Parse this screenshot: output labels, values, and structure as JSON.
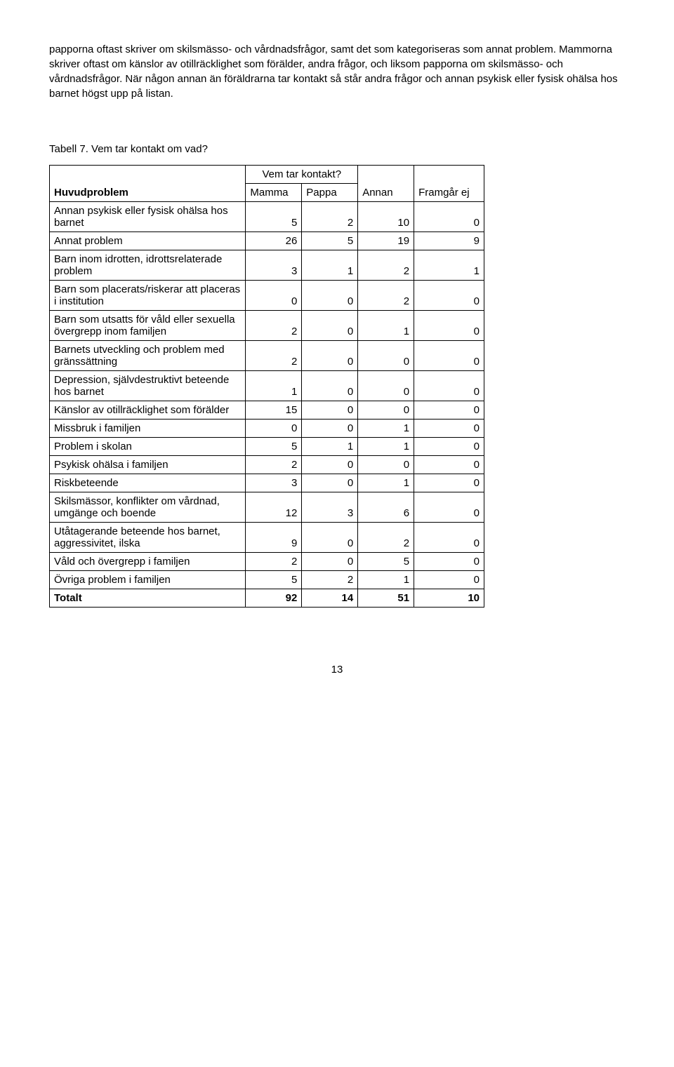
{
  "paragraph": "papporna oftast skriver om skilsmässo- och vårdnadsfrågor, samt det som kategoriseras som annat problem. Mammorna skriver oftast om känslor av otillräcklighet som förälder, andra frågor, och liksom papporna om skilsmässo- och vårdnadsfrågor. När någon annan än föräldrarna tar kontakt så står andra frågor och annan psykisk eller fysisk ohälsa hos barnet högst upp på listan.",
  "table_caption": "Tabell 7. Vem tar kontakt om vad?",
  "table": {
    "group_header": "Vem tar kontakt?",
    "row_header_label": "Huvudproblem",
    "columns": [
      "Mamma",
      "Pappa",
      "Annan",
      "Framgår ej"
    ],
    "col_widths": [
      "280px",
      "80px",
      "80px",
      "80px",
      "100px"
    ],
    "rows": [
      {
        "label": "Annan psykisk eller fysisk ohälsa hos barnet",
        "vals": [
          5,
          2,
          10,
          0
        ]
      },
      {
        "label": "Annat problem",
        "vals": [
          26,
          5,
          19,
          9
        ]
      },
      {
        "label": "Barn inom idrotten, idrottsrelaterade problem",
        "vals": [
          3,
          1,
          2,
          1
        ]
      },
      {
        "label": "Barn som placerats/riskerar att placeras i institution",
        "vals": [
          0,
          0,
          2,
          0
        ]
      },
      {
        "label": "Barn som utsatts för våld eller sexuella övergrepp inom familjen",
        "vals": [
          2,
          0,
          1,
          0
        ]
      },
      {
        "label": "Barnets utveckling och problem med gränssättning",
        "vals": [
          2,
          0,
          0,
          0
        ]
      },
      {
        "label": "Depression, självdestruktivt beteende hos barnet",
        "vals": [
          1,
          0,
          0,
          0
        ]
      },
      {
        "label": "Känslor av otillräcklighet som förälder",
        "vals": [
          15,
          0,
          0,
          0
        ]
      },
      {
        "label": "Missbruk i familjen",
        "vals": [
          0,
          0,
          1,
          0
        ]
      },
      {
        "label": "Problem i skolan",
        "vals": [
          5,
          1,
          1,
          0
        ]
      },
      {
        "label": "Psykisk ohälsa i familjen",
        "vals": [
          2,
          0,
          0,
          0
        ]
      },
      {
        "label": "Riskbeteende",
        "vals": [
          3,
          0,
          1,
          0
        ]
      },
      {
        "label": "Skilsmässor, konflikter om vårdnad, umgänge och boende",
        "vals": [
          12,
          3,
          6,
          0
        ]
      },
      {
        "label": "Utåtagerande beteende hos barnet, aggressivitet, ilska",
        "vals": [
          9,
          0,
          2,
          0
        ]
      },
      {
        "label": "Våld och övergrepp i familjen",
        "vals": [
          2,
          0,
          5,
          0
        ]
      },
      {
        "label": "Övriga problem i familjen",
        "vals": [
          5,
          2,
          1,
          0
        ]
      }
    ],
    "total_row": {
      "label": "Totalt",
      "vals": [
        92,
        14,
        51,
        10
      ]
    }
  },
  "page_number": "13"
}
